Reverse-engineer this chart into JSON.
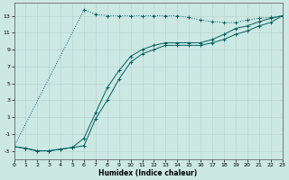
{
  "xlabel": "Humidex (Indice chaleur)",
  "bg_color": "#cce8e3",
  "line_color": "#006060",
  "grid_color": "#b8d0cc",
  "xlim": [
    0,
    23
  ],
  "ylim": [
    -4,
    14.5
  ],
  "xticks": [
    0,
    1,
    2,
    3,
    4,
    5,
    6,
    7,
    8,
    9,
    10,
    11,
    12,
    13,
    14,
    15,
    16,
    17,
    18,
    19,
    20,
    21,
    22,
    23
  ],
  "yticks": [
    -3,
    -1,
    1,
    3,
    5,
    7,
    9,
    11,
    13
  ],
  "line1_x": [
    0,
    1,
    2,
    3,
    4,
    5,
    6,
    7,
    8,
    9,
    10,
    11,
    12,
    13,
    14,
    15,
    16,
    17,
    18,
    19,
    20,
    21,
    22,
    23
  ],
  "line1_y": [
    -2.5,
    -2.7,
    -3.0,
    -3.0,
    -2.8,
    -2.6,
    -2.4,
    0.8,
    3.0,
    5.5,
    7.5,
    8.5,
    9.0,
    9.5,
    9.5,
    9.5,
    9.5,
    9.8,
    10.2,
    10.8,
    11.2,
    11.8,
    12.2,
    13.0
  ],
  "line2_x": [
    0,
    1,
    2,
    3,
    4,
    5,
    6,
    7,
    8,
    9,
    10,
    11,
    12,
    13,
    14,
    15,
    16,
    17,
    18,
    19,
    20,
    21,
    22,
    23
  ],
  "line2_y": [
    -2.5,
    -2.7,
    -3.0,
    -3.0,
    -2.8,
    -2.6,
    -1.5,
    1.5,
    4.5,
    6.5,
    8.2,
    9.0,
    9.5,
    9.8,
    9.8,
    9.8,
    9.8,
    10.2,
    10.8,
    11.5,
    11.8,
    12.3,
    12.7,
    13.0
  ],
  "line3_x": [
    0,
    6,
    7,
    8,
    9,
    10,
    11,
    12,
    13,
    14,
    15,
    16,
    17,
    18,
    19,
    20,
    21,
    22,
    23
  ],
  "line3_y": [
    -2.5,
    13.7,
    13.2,
    13.0,
    13.0,
    13.0,
    13.0,
    13.0,
    13.0,
    13.0,
    12.8,
    12.5,
    12.3,
    12.2,
    12.2,
    12.5,
    12.7,
    12.8,
    13.0
  ]
}
